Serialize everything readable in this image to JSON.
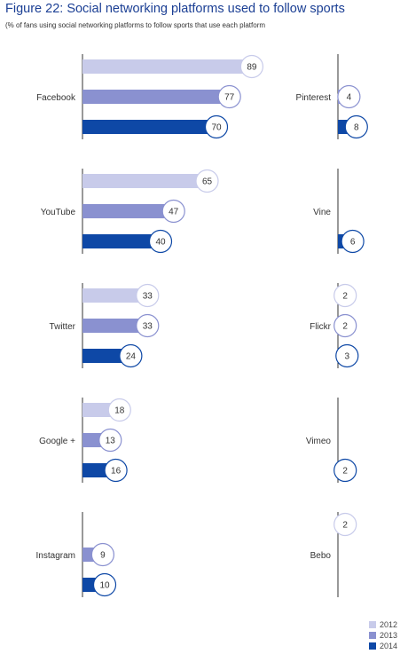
{
  "title": "Figure 22: Social networking platforms used to follow sports",
  "subtitle": "(% of fans using social networking platforms to follow sports that use each platform",
  "colors": {
    "2012": "#c8cbea",
    "2013": "#8a91d0",
    "2014": "#0e48a6"
  },
  "legend": [
    "2012",
    "2013",
    "2014"
  ],
  "chart_data": {
    "type": "bar",
    "orientation": "horizontal",
    "series_names": [
      "2012",
      "2013",
      "2014"
    ],
    "platforms": [
      {
        "name": "Facebook",
        "values": [
          89,
          77,
          70
        ]
      },
      {
        "name": "YouTube",
        "values": [
          65,
          47,
          40
        ]
      },
      {
        "name": "Twitter",
        "values": [
          33,
          33,
          24
        ]
      },
      {
        "name": "Google +",
        "values": [
          18,
          13,
          16
        ]
      },
      {
        "name": "Instagram",
        "values": [
          null,
          9,
          10
        ]
      },
      {
        "name": "Pinterest",
        "values": [
          null,
          4,
          8
        ]
      },
      {
        "name": "Vine",
        "values": [
          null,
          null,
          6
        ]
      },
      {
        "name": "Flickr",
        "values": [
          2,
          2,
          3
        ]
      },
      {
        "name": "Vimeo",
        "values": [
          null,
          null,
          2
        ]
      },
      {
        "name": "Bebo",
        "values": [
          2,
          null,
          null
        ]
      }
    ]
  }
}
